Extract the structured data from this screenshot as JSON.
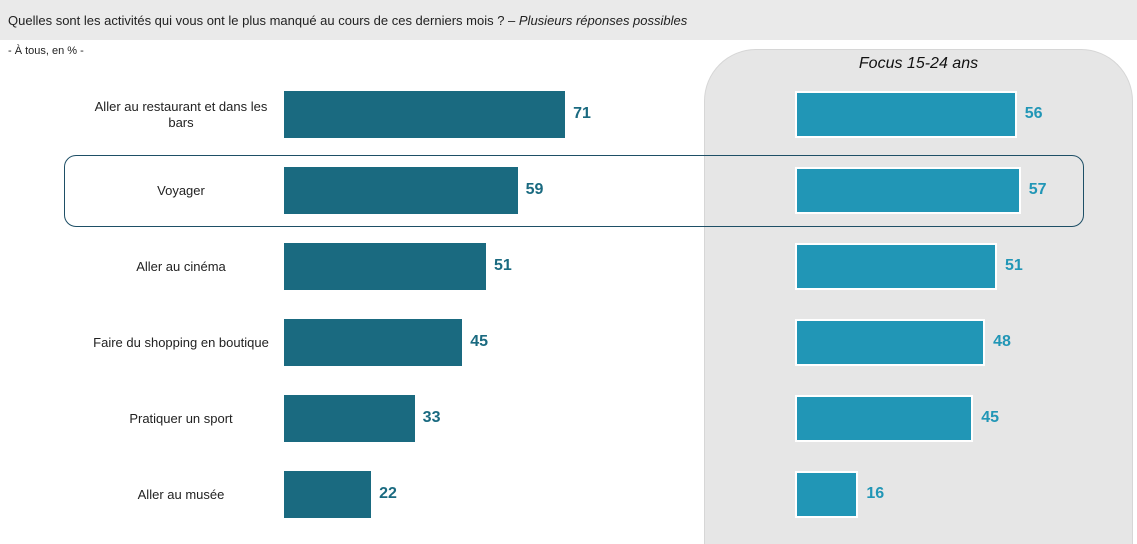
{
  "header": {
    "question": "Quelles sont les activités qui vous ont le plus manqué au cours de ces derniers mois ? – ",
    "question_sub": "Plusieurs réponses possibles",
    "base_note": "- À tous, en % -",
    "focus_title": "Focus 15-24 ans"
  },
  "chart_data": {
    "type": "bar",
    "orientation": "horizontal",
    "categories": [
      "Aller au restaurant et dans les bars",
      "Voyager",
      "Aller au cinéma",
      "Faire du shopping en boutique",
      "Pratiquer un sport",
      "Aller au musée"
    ],
    "series": [
      {
        "values": [
          71,
          59,
          51,
          45,
          33,
          22
        ],
        "color": "#1a6a80"
      },
      {
        "name": "Focus 15-24 ans",
        "values": [
          56,
          57,
          51,
          48,
          45,
          16
        ],
        "color": "#2196b6"
      }
    ],
    "value_unit": "%",
    "highlighted_category": "Voyager",
    "grid": false
  }
}
